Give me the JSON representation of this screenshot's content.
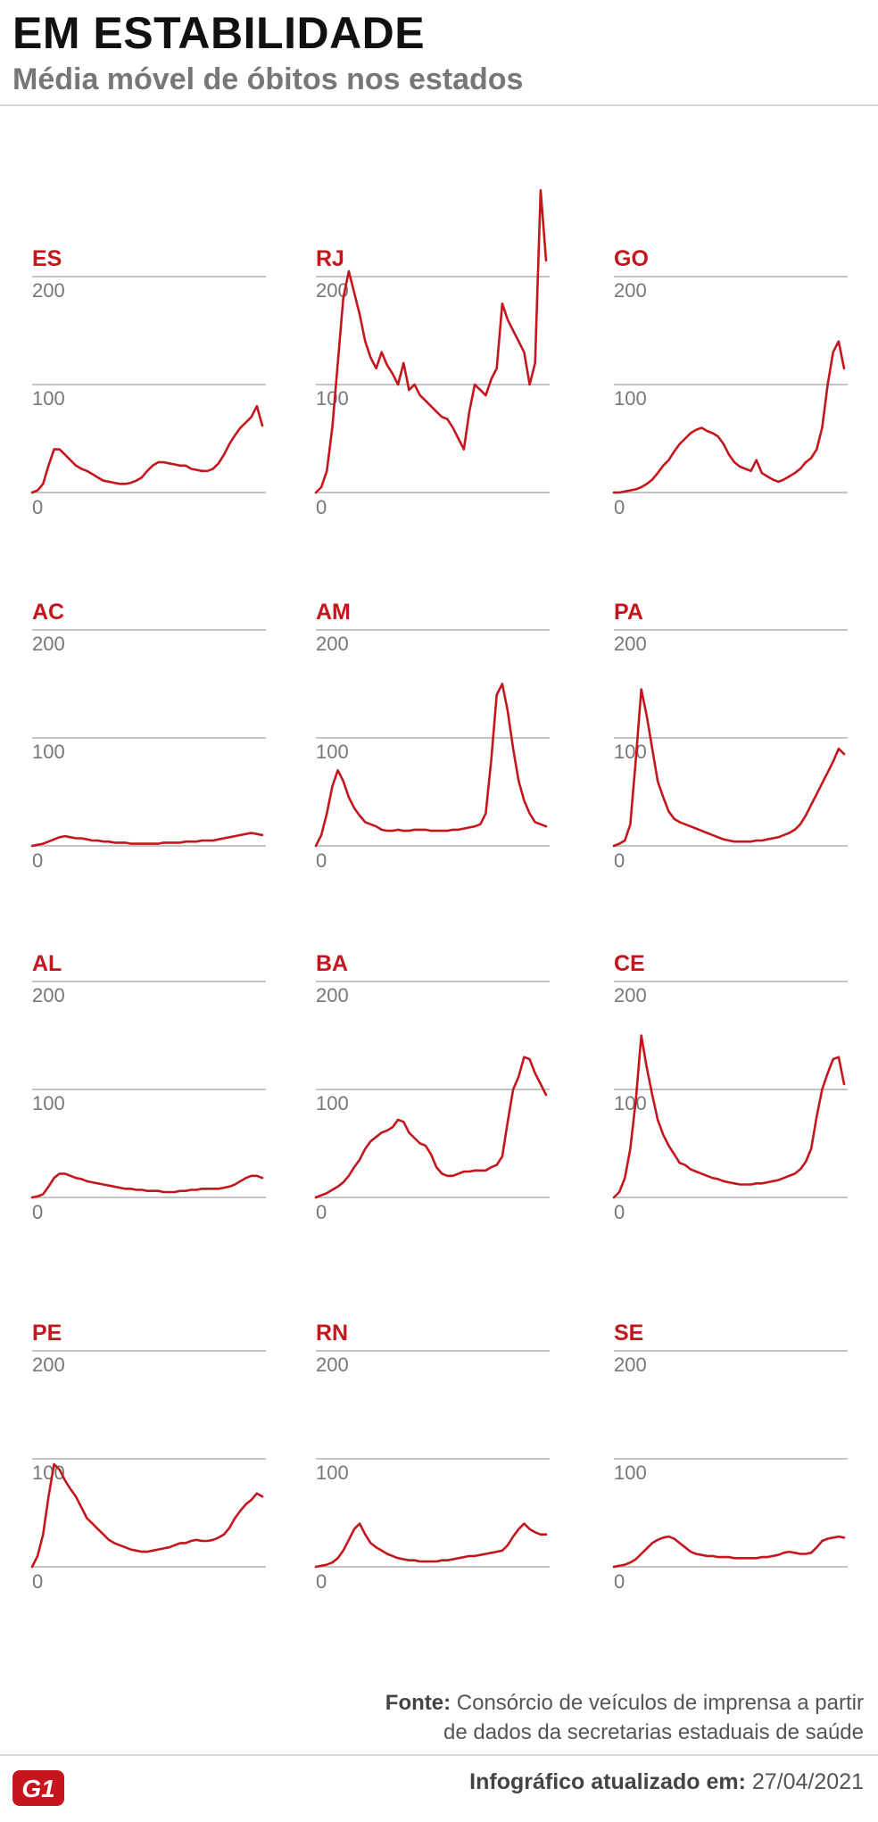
{
  "header": {
    "title": "EM ESTABILIDADE",
    "subtitle": "Média móvel de óbitos nos estados"
  },
  "colors": {
    "accent": "#c4161c",
    "grid": "#b0b0b0",
    "text": "#777777"
  },
  "chart_data": [
    {
      "type": "line",
      "title": "ES",
      "ylim": [
        0,
        200
      ],
      "yticks": [
        0,
        100,
        200
      ],
      "x": [
        0,
        10,
        20,
        30,
        40,
        50,
        60,
        70,
        80,
        90,
        100,
        110,
        120,
        130,
        140,
        150,
        160,
        170,
        180,
        190,
        200,
        210,
        220,
        230,
        240,
        250,
        260,
        270,
        280,
        290,
        300,
        310,
        320,
        330,
        340,
        350,
        360,
        370,
        380,
        390,
        400,
        410,
        420
      ],
      "values": [
        0,
        2,
        8,
        25,
        40,
        40,
        35,
        30,
        25,
        22,
        20,
        17,
        14,
        11,
        10,
        9,
        8,
        8,
        9,
        11,
        14,
        20,
        25,
        28,
        28,
        27,
        26,
        25,
        25,
        22,
        21,
        20,
        20,
        22,
        27,
        35,
        45,
        53,
        60,
        65,
        70,
        80,
        62
      ]
    },
    {
      "type": "line",
      "title": "RJ",
      "ylim": [
        0,
        200
      ],
      "yticks": [
        0,
        100,
        200
      ],
      "x": [
        0,
        10,
        20,
        30,
        40,
        50,
        60,
        70,
        80,
        90,
        100,
        110,
        120,
        130,
        140,
        150,
        160,
        170,
        180,
        190,
        200,
        210,
        220,
        230,
        240,
        250,
        260,
        270,
        280,
        290,
        300,
        310,
        320,
        330,
        340,
        350,
        360,
        370,
        380,
        390,
        400,
        410,
        420
      ],
      "values": [
        0,
        5,
        20,
        60,
        120,
        180,
        205,
        185,
        165,
        140,
        125,
        115,
        130,
        118,
        110,
        100,
        120,
        95,
        100,
        90,
        85,
        80,
        75,
        70,
        68,
        60,
        50,
        40,
        75,
        100,
        95,
        90,
        105,
        115,
        175,
        160,
        150,
        140,
        130,
        100,
        120,
        280,
        215
      ]
    },
    {
      "type": "line",
      "title": "GO",
      "ylim": [
        0,
        200
      ],
      "yticks": [
        0,
        100,
        200
      ],
      "x": [
        0,
        10,
        20,
        30,
        40,
        50,
        60,
        70,
        80,
        90,
        100,
        110,
        120,
        130,
        140,
        150,
        160,
        170,
        180,
        190,
        200,
        210,
        220,
        230,
        240,
        250,
        260,
        270,
        280,
        290,
        300,
        310,
        320,
        330,
        340,
        350,
        360,
        370,
        380,
        390,
        400,
        410,
        420
      ],
      "values": [
        0,
        0,
        1,
        2,
        3,
        5,
        8,
        12,
        18,
        25,
        30,
        38,
        45,
        50,
        55,
        58,
        60,
        57,
        55,
        52,
        45,
        35,
        28,
        24,
        22,
        20,
        30,
        18,
        15,
        12,
        10,
        12,
        15,
        18,
        22,
        28,
        32,
        40,
        60,
        100,
        130,
        140,
        115
      ]
    },
    {
      "type": "line",
      "title": "AC",
      "ylim": [
        0,
        200
      ],
      "yticks": [
        0,
        100,
        200
      ],
      "x": [
        0,
        10,
        20,
        30,
        40,
        50,
        60,
        70,
        80,
        90,
        100,
        110,
        120,
        130,
        140,
        150,
        160,
        170,
        180,
        190,
        200,
        210,
        220,
        230,
        240,
        250,
        260,
        270,
        280,
        290,
        300,
        310,
        320,
        330,
        340,
        350,
        360,
        370,
        380,
        390,
        400,
        410,
        420
      ],
      "values": [
        0,
        1,
        2,
        4,
        6,
        8,
        9,
        8,
        7,
        7,
        6,
        5,
        5,
        4,
        4,
        3,
        3,
        3,
        2,
        2,
        2,
        2,
        2,
        2,
        3,
        3,
        3,
        3,
        4,
        4,
        4,
        5,
        5,
        5,
        6,
        7,
        8,
        9,
        10,
        11,
        12,
        11,
        10
      ]
    },
    {
      "type": "line",
      "title": "AM",
      "ylim": [
        0,
        200
      ],
      "yticks": [
        0,
        100,
        200
      ],
      "x": [
        0,
        10,
        20,
        30,
        40,
        50,
        60,
        70,
        80,
        90,
        100,
        110,
        120,
        130,
        140,
        150,
        160,
        170,
        180,
        190,
        200,
        210,
        220,
        230,
        240,
        250,
        260,
        270,
        280,
        290,
        300,
        310,
        320,
        330,
        340,
        350,
        360,
        370,
        380,
        390,
        400,
        410,
        420
      ],
      "values": [
        0,
        10,
        30,
        55,
        70,
        60,
        45,
        35,
        28,
        22,
        20,
        18,
        15,
        14,
        14,
        15,
        14,
        14,
        15,
        15,
        15,
        14,
        14,
        14,
        14,
        15,
        15,
        16,
        17,
        18,
        20,
        30,
        80,
        140,
        150,
        125,
        90,
        60,
        42,
        30,
        22,
        20,
        18
      ]
    },
    {
      "type": "line",
      "title": "PA",
      "ylim": [
        0,
        200
      ],
      "yticks": [
        0,
        100,
        200
      ],
      "x": [
        0,
        10,
        20,
        30,
        40,
        50,
        60,
        70,
        80,
        90,
        100,
        110,
        120,
        130,
        140,
        150,
        160,
        170,
        180,
        190,
        200,
        210,
        220,
        230,
        240,
        250,
        260,
        270,
        280,
        290,
        300,
        310,
        320,
        330,
        340,
        350,
        360,
        370,
        380,
        390,
        400,
        410,
        420
      ],
      "values": [
        0,
        2,
        5,
        20,
        80,
        145,
        120,
        90,
        60,
        45,
        32,
        25,
        22,
        20,
        18,
        16,
        14,
        12,
        10,
        8,
        6,
        5,
        4,
        4,
        4,
        4,
        5,
        5,
        6,
        7,
        8,
        10,
        12,
        15,
        20,
        28,
        38,
        48,
        58,
        68,
        78,
        90,
        85
      ]
    },
    {
      "type": "line",
      "title": "AL",
      "ylim": [
        0,
        200
      ],
      "yticks": [
        0,
        100,
        200
      ],
      "x": [
        0,
        10,
        20,
        30,
        40,
        50,
        60,
        70,
        80,
        90,
        100,
        110,
        120,
        130,
        140,
        150,
        160,
        170,
        180,
        190,
        200,
        210,
        220,
        230,
        240,
        250,
        260,
        270,
        280,
        290,
        300,
        310,
        320,
        330,
        340,
        350,
        360,
        370,
        380,
        390,
        400,
        410,
        420
      ],
      "values": [
        0,
        1,
        3,
        10,
        18,
        22,
        22,
        20,
        18,
        17,
        15,
        14,
        13,
        12,
        11,
        10,
        9,
        8,
        8,
        7,
        7,
        6,
        6,
        6,
        5,
        5,
        5,
        6,
        6,
        7,
        7,
        8,
        8,
        8,
        8,
        9,
        10,
        12,
        15,
        18,
        20,
        20,
        18
      ]
    },
    {
      "type": "line",
      "title": "BA",
      "ylim": [
        0,
        200
      ],
      "yticks": [
        0,
        100,
        200
      ],
      "x": [
        0,
        10,
        20,
        30,
        40,
        50,
        60,
        70,
        80,
        90,
        100,
        110,
        120,
        130,
        140,
        150,
        160,
        170,
        180,
        190,
        200,
        210,
        220,
        230,
        240,
        250,
        260,
        270,
        280,
        290,
        300,
        310,
        320,
        330,
        340,
        350,
        360,
        370,
        380,
        390,
        400,
        410,
        420
      ],
      "values": [
        0,
        2,
        4,
        7,
        10,
        14,
        20,
        28,
        35,
        45,
        52,
        56,
        60,
        62,
        65,
        72,
        70,
        60,
        55,
        50,
        48,
        40,
        28,
        22,
        20,
        20,
        22,
        24,
        24,
        25,
        25,
        25,
        28,
        30,
        38,
        70,
        100,
        112,
        130,
        128,
        115,
        105,
        95
      ]
    },
    {
      "type": "line",
      "title": "CE",
      "ylim": [
        0,
        200
      ],
      "yticks": [
        0,
        100,
        200
      ],
      "x": [
        0,
        10,
        20,
        30,
        40,
        50,
        60,
        70,
        80,
        90,
        100,
        110,
        120,
        130,
        140,
        150,
        160,
        170,
        180,
        190,
        200,
        210,
        220,
        230,
        240,
        250,
        260,
        270,
        280,
        290,
        300,
        310,
        320,
        330,
        340,
        350,
        360,
        370,
        380,
        390,
        400,
        410,
        420
      ],
      "values": [
        0,
        5,
        18,
        45,
        90,
        150,
        120,
        95,
        72,
        58,
        48,
        40,
        32,
        30,
        26,
        24,
        22,
        20,
        18,
        17,
        15,
        14,
        13,
        12,
        12,
        12,
        13,
        13,
        14,
        15,
        16,
        18,
        20,
        22,
        26,
        33,
        45,
        75,
        100,
        115,
        128,
        130,
        105
      ]
    },
    {
      "type": "line",
      "title": "PE",
      "ylim": [
        0,
        200
      ],
      "yticks": [
        0,
        100,
        200
      ],
      "x": [
        0,
        10,
        20,
        30,
        40,
        50,
        60,
        70,
        80,
        90,
        100,
        110,
        120,
        130,
        140,
        150,
        160,
        170,
        180,
        190,
        200,
        210,
        220,
        230,
        240,
        250,
        260,
        270,
        280,
        290,
        300,
        310,
        320,
        330,
        340,
        350,
        360,
        370,
        380,
        390,
        400,
        410,
        420
      ],
      "values": [
        0,
        10,
        30,
        65,
        95,
        90,
        80,
        72,
        65,
        55,
        45,
        40,
        35,
        30,
        25,
        22,
        20,
        18,
        16,
        15,
        14,
        14,
        15,
        16,
        17,
        18,
        20,
        22,
        22,
        24,
        25,
        24,
        24,
        25,
        27,
        30,
        36,
        45,
        52,
        58,
        62,
        68,
        65
      ]
    },
    {
      "type": "line",
      "title": "RN",
      "ylim": [
        0,
        200
      ],
      "yticks": [
        0,
        100,
        200
      ],
      "x": [
        0,
        10,
        20,
        30,
        40,
        50,
        60,
        70,
        80,
        90,
        100,
        110,
        120,
        130,
        140,
        150,
        160,
        170,
        180,
        190,
        200,
        210,
        220,
        230,
        240,
        250,
        260,
        270,
        280,
        290,
        300,
        310,
        320,
        330,
        340,
        350,
        360,
        370,
        380,
        390,
        400,
        410,
        420
      ],
      "values": [
        0,
        1,
        2,
        4,
        8,
        15,
        25,
        35,
        40,
        30,
        22,
        18,
        15,
        12,
        10,
        8,
        7,
        6,
        6,
        5,
        5,
        5,
        5,
        6,
        6,
        7,
        8,
        9,
        10,
        10,
        11,
        12,
        13,
        14,
        15,
        20,
        28,
        35,
        40,
        35,
        32,
        30,
        30
      ]
    },
    {
      "type": "line",
      "title": "SE",
      "ylim": [
        0,
        200
      ],
      "yticks": [
        0,
        100,
        200
      ],
      "x": [
        0,
        10,
        20,
        30,
        40,
        50,
        60,
        70,
        80,
        90,
        100,
        110,
        120,
        130,
        140,
        150,
        160,
        170,
        180,
        190,
        200,
        210,
        220,
        230,
        240,
        250,
        260,
        270,
        280,
        290,
        300,
        310,
        320,
        330,
        340,
        350,
        360,
        370,
        380,
        390,
        400,
        410,
        420
      ],
      "values": [
        0,
        1,
        2,
        4,
        7,
        12,
        17,
        22,
        25,
        27,
        28,
        26,
        22,
        18,
        14,
        12,
        11,
        10,
        10,
        9,
        9,
        9,
        8,
        8,
        8,
        8,
        8,
        9,
        9,
        10,
        11,
        13,
        14,
        13,
        12,
        12,
        13,
        18,
        24,
        26,
        27,
        28,
        27
      ]
    }
  ],
  "footer": {
    "source_label": "Fonte:",
    "source_text_1": "Consórcio de veículos de imprensa a partir",
    "source_text_2": "de dados da secretarias estaduais de saúde",
    "logo_text": "G1",
    "updated_label": "Infográfico atualizado em:",
    "updated_date": "27/04/2021"
  }
}
